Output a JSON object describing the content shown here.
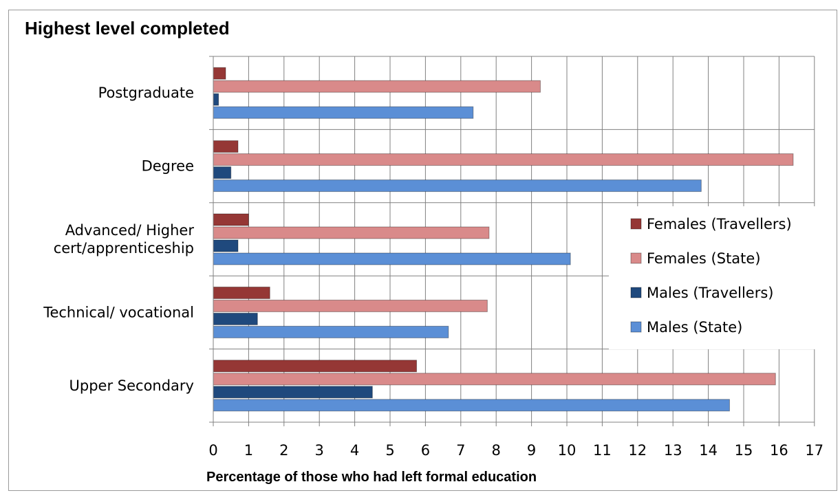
{
  "chart_data": {
    "type": "bar",
    "orientation": "horizontal",
    "title": "Highest level completed",
    "xlabel": "Percentage of those who had left formal education",
    "ylabel": "",
    "xlim": [
      0,
      17
    ],
    "xticks": [
      0,
      1,
      2,
      3,
      4,
      5,
      6,
      7,
      8,
      9,
      10,
      11,
      12,
      13,
      14,
      15,
      16,
      17
    ],
    "grid": true,
    "legend_position": "right",
    "categories": [
      "Postgraduate",
      "Degree",
      "Advanced/ Higher cert/apprenticeship",
      "Technical/ vocational",
      "Upper Secondary"
    ],
    "category_lines": [
      [
        "Postgraduate"
      ],
      [
        "Degree"
      ],
      [
        "Advanced/ Higher",
        "cert/apprenticeship"
      ],
      [
        "Technical/ vocational"
      ],
      [
        "Upper Secondary"
      ]
    ],
    "series": [
      {
        "name": "Females (Travellers)",
        "color": "#953735",
        "values": [
          0.35,
          0.7,
          1.0,
          1.6,
          5.75
        ]
      },
      {
        "name": "Females (State)",
        "color": "#d98a8a",
        "values": [
          9.25,
          16.4,
          7.8,
          7.75,
          15.9
        ]
      },
      {
        "name": "Males (Travellers)",
        "color": "#1f497d",
        "values": [
          0.15,
          0.5,
          0.7,
          1.25,
          4.5
        ]
      },
      {
        "name": "Males (State)",
        "color": "#5b8fd6",
        "values": [
          7.35,
          13.8,
          10.1,
          6.65,
          14.6
        ]
      }
    ],
    "legend_order": [
      "Females (Travellers)",
      "Females (State)",
      "Males (Travellers)",
      "Males (State)"
    ]
  }
}
